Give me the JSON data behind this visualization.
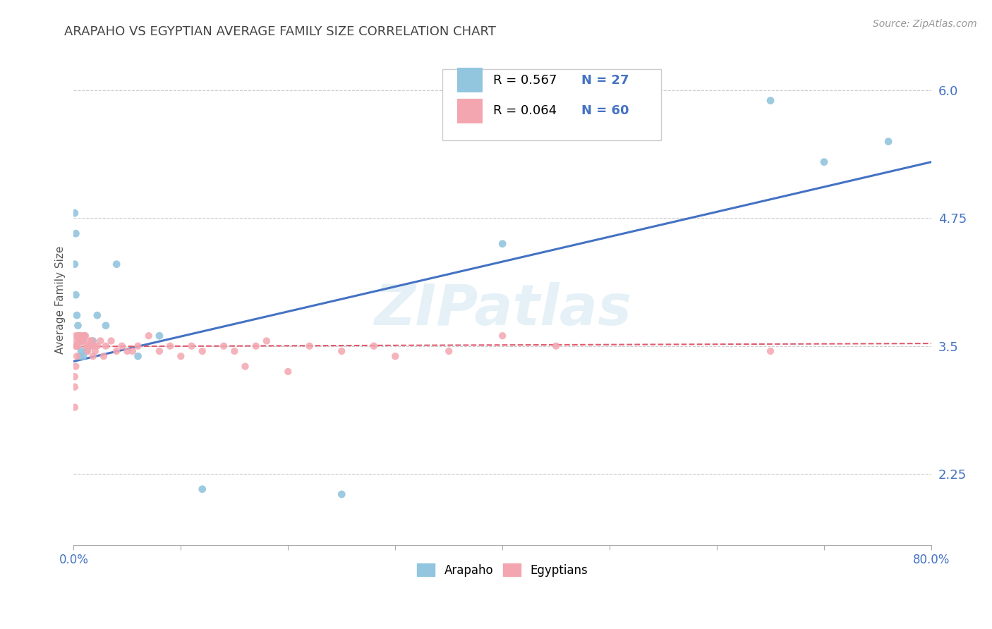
{
  "title": "ARAPAHO VS EGYPTIAN AVERAGE FAMILY SIZE CORRELATION CHART",
  "source_text": "Source: ZipAtlas.com",
  "ylabel": "Average Family Size",
  "x_min": 0.0,
  "x_max": 0.8,
  "y_min": 1.55,
  "y_max": 6.35,
  "y_ticks": [
    2.25,
    3.5,
    4.75,
    6.0
  ],
  "x_ticks": [
    0.0,
    0.1,
    0.2,
    0.3,
    0.4,
    0.5,
    0.6,
    0.7,
    0.8
  ],
  "watermark": "ZIPatlas",
  "arapaho_color": "#92c5de",
  "egyptian_color": "#f4a6b0",
  "arapaho_line_color": "#4472c4",
  "egyptian_line_color": "#e05a6e",
  "legend_r1": "R = 0.567",
  "legend_n1": "N = 27",
  "legend_r2": "R = 0.064",
  "legend_n2": "N = 60",
  "arapaho_x": [
    0.001,
    0.001,
    0.002,
    0.002,
    0.003,
    0.003,
    0.004,
    0.005,
    0.006,
    0.007,
    0.008,
    0.009,
    0.01,
    0.012,
    0.015,
    0.018,
    0.022,
    0.03,
    0.04,
    0.06,
    0.08,
    0.12,
    0.25,
    0.4,
    0.65,
    0.7,
    0.76
  ],
  "arapaho_y": [
    4.8,
    4.3,
    4.6,
    4.0,
    3.8,
    3.5,
    3.7,
    3.6,
    3.4,
    3.45,
    3.55,
    3.4,
    3.6,
    3.45,
    3.5,
    3.55,
    3.8,
    3.7,
    4.3,
    3.4,
    3.6,
    2.1,
    2.05,
    4.5,
    5.9,
    5.3,
    5.5
  ],
  "egyptian_x": [
    0.001,
    0.001,
    0.001,
    0.002,
    0.002,
    0.002,
    0.003,
    0.003,
    0.003,
    0.004,
    0.004,
    0.005,
    0.005,
    0.006,
    0.006,
    0.007,
    0.007,
    0.008,
    0.009,
    0.01,
    0.011,
    0.012,
    0.013,
    0.014,
    0.015,
    0.016,
    0.017,
    0.018,
    0.019,
    0.02,
    0.022,
    0.025,
    0.028,
    0.03,
    0.035,
    0.04,
    0.045,
    0.05,
    0.055,
    0.06,
    0.07,
    0.08,
    0.09,
    0.1,
    0.11,
    0.12,
    0.14,
    0.15,
    0.16,
    0.17,
    0.18,
    0.2,
    0.22,
    0.25,
    0.28,
    0.3,
    0.35,
    0.4,
    0.45,
    0.65
  ],
  "egyptian_y": [
    3.2,
    3.1,
    2.9,
    3.6,
    3.5,
    3.3,
    3.55,
    3.5,
    3.4,
    3.6,
    3.5,
    3.6,
    3.55,
    3.6,
    3.55,
    3.6,
    3.55,
    3.55,
    3.55,
    3.6,
    3.6,
    3.5,
    3.45,
    3.5,
    3.55,
    3.5,
    3.55,
    3.4,
    3.5,
    3.45,
    3.5,
    3.55,
    3.4,
    3.5,
    3.55,
    3.45,
    3.5,
    3.45,
    3.45,
    3.5,
    3.6,
    3.45,
    3.5,
    3.4,
    3.5,
    3.45,
    3.5,
    3.45,
    3.3,
    3.5,
    3.55,
    3.25,
    3.5,
    3.45,
    3.5,
    3.4,
    3.45,
    3.6,
    3.5,
    3.45
  ]
}
